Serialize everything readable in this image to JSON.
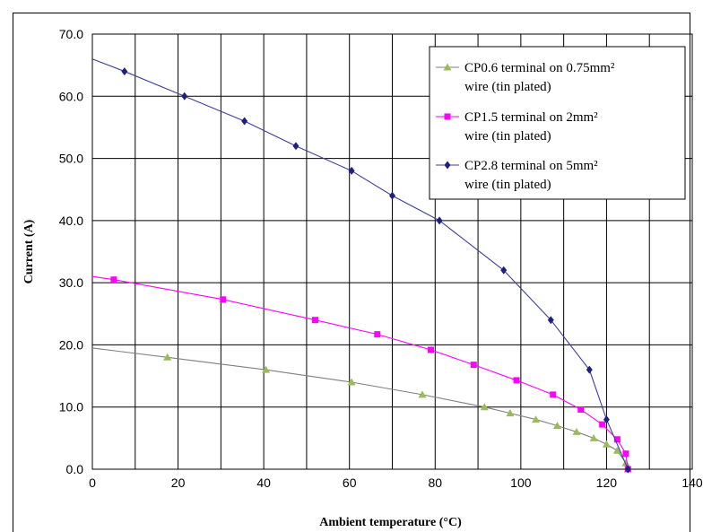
{
  "chart_data": {
    "type": "line",
    "title": "",
    "xlabel": "Ambient temperature (°C)",
    "ylabel": "Current (A)",
    "xlim": [
      0,
      140
    ],
    "ylim": [
      0,
      70
    ],
    "xticks": [
      0,
      20,
      40,
      60,
      80,
      100,
      120,
      140
    ],
    "yticks": [
      0,
      10,
      20,
      30,
      40,
      50,
      60,
      70
    ],
    "xtick_labels": [
      "0",
      "20",
      "40",
      "60",
      "80",
      "100",
      "120",
      "140"
    ],
    "ytick_labels": [
      "0.0",
      "10.0",
      "20.0",
      "30.0",
      "40.0",
      "50.0",
      "60.0",
      "70.0"
    ],
    "grid": true,
    "legend_position": "top-right",
    "series": [
      {
        "name_lines": [
          "CP0.6 terminal on 0.75mm²",
          "wire (tin plated)"
        ],
        "color": "#7f7f7f",
        "marker_color": "#9bbb59",
        "marker": "triangle",
        "x": [
          0,
          17.5,
          40.5,
          60.5,
          77,
          91.5,
          97.5,
          103.5,
          108.5,
          113,
          117,
          120,
          122.5,
          124.5,
          125
        ],
        "y": [
          19.5,
          18,
          16,
          14,
          12,
          10,
          9,
          8,
          7,
          6,
          5,
          4,
          3,
          1,
          0
        ],
        "marked": [
          false,
          true,
          true,
          true,
          true,
          true,
          true,
          true,
          true,
          true,
          true,
          true,
          true,
          true,
          true
        ]
      },
      {
        "name_lines": [
          "CP1.5 terminal on 2mm²",
          "wire (tin plated)"
        ],
        "color": "#ff00ff",
        "marker_color": "#ff00ff",
        "marker": "square",
        "x": [
          0,
          5,
          30.5,
          52,
          66.5,
          79,
          89,
          99,
          107.5,
          114,
          119,
          122.5,
          124.5,
          125
        ],
        "y": [
          31,
          30.5,
          27.3,
          24,
          21.7,
          19.2,
          16.8,
          14.3,
          12,
          9.6,
          7.2,
          4.8,
          2.5,
          0
        ],
        "marked": [
          false,
          true,
          true,
          true,
          true,
          true,
          true,
          true,
          true,
          true,
          true,
          true,
          true,
          true
        ]
      },
      {
        "name_lines": [
          "CP2.8 terminal on 5mm²",
          "wire (tin plated)"
        ],
        "color": "#3f3f9f",
        "marker_color": "#1f1f7f",
        "marker": "diamond",
        "x": [
          0,
          7.5,
          21.5,
          35.5,
          47.5,
          60.5,
          70,
          81,
          96,
          107,
          116,
          120,
          125
        ],
        "y": [
          66,
          64,
          60,
          56,
          52,
          48,
          44,
          40,
          32,
          24,
          16,
          8,
          0
        ],
        "marked": [
          false,
          true,
          true,
          true,
          true,
          true,
          true,
          true,
          true,
          true,
          true,
          true,
          true
        ]
      }
    ]
  }
}
